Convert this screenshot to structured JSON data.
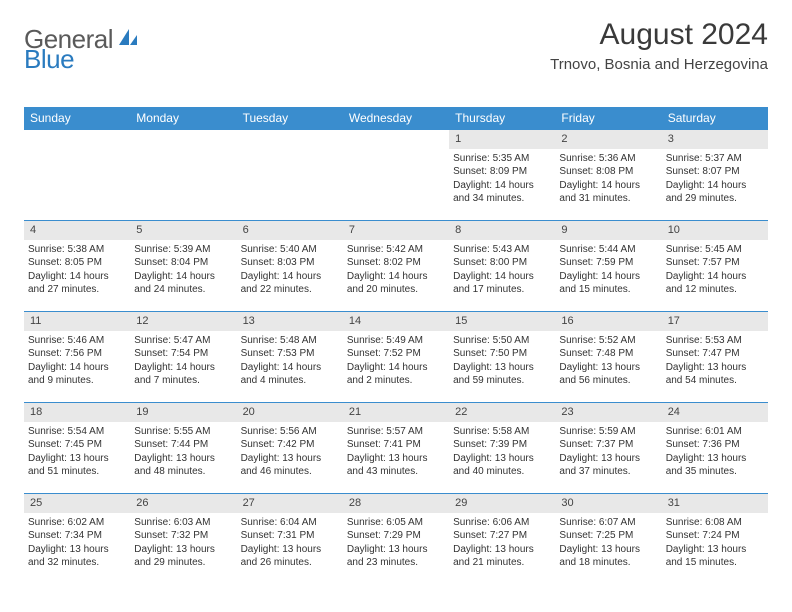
{
  "logo": {
    "part1": "General",
    "part2": "Blue"
  },
  "title": "August 2024",
  "location": "Trnovo, Bosnia and Herzegovina",
  "colors": {
    "header_bg": "#3a8dce",
    "header_text": "#ffffff",
    "daynum_bg": "#e8e8e8",
    "row_border": "#3a8dce",
    "logo_gray": "#5a5a5a",
    "logo_blue": "#2a7bbf",
    "text": "#333333"
  },
  "day_names": [
    "Sunday",
    "Monday",
    "Tuesday",
    "Wednesday",
    "Thursday",
    "Friday",
    "Saturday"
  ],
  "weeks": [
    [
      {
        "empty": true
      },
      {
        "empty": true
      },
      {
        "empty": true
      },
      {
        "empty": true
      },
      {
        "day": "1",
        "sunrise": "Sunrise: 5:35 AM",
        "sunset": "Sunset: 8:09 PM",
        "daylight1": "Daylight: 14 hours",
        "daylight2": "and 34 minutes."
      },
      {
        "day": "2",
        "sunrise": "Sunrise: 5:36 AM",
        "sunset": "Sunset: 8:08 PM",
        "daylight1": "Daylight: 14 hours",
        "daylight2": "and 31 minutes."
      },
      {
        "day": "3",
        "sunrise": "Sunrise: 5:37 AM",
        "sunset": "Sunset: 8:07 PM",
        "daylight1": "Daylight: 14 hours",
        "daylight2": "and 29 minutes."
      }
    ],
    [
      {
        "day": "4",
        "sunrise": "Sunrise: 5:38 AM",
        "sunset": "Sunset: 8:05 PM",
        "daylight1": "Daylight: 14 hours",
        "daylight2": "and 27 minutes."
      },
      {
        "day": "5",
        "sunrise": "Sunrise: 5:39 AM",
        "sunset": "Sunset: 8:04 PM",
        "daylight1": "Daylight: 14 hours",
        "daylight2": "and 24 minutes."
      },
      {
        "day": "6",
        "sunrise": "Sunrise: 5:40 AM",
        "sunset": "Sunset: 8:03 PM",
        "daylight1": "Daylight: 14 hours",
        "daylight2": "and 22 minutes."
      },
      {
        "day": "7",
        "sunrise": "Sunrise: 5:42 AM",
        "sunset": "Sunset: 8:02 PM",
        "daylight1": "Daylight: 14 hours",
        "daylight2": "and 20 minutes."
      },
      {
        "day": "8",
        "sunrise": "Sunrise: 5:43 AM",
        "sunset": "Sunset: 8:00 PM",
        "daylight1": "Daylight: 14 hours",
        "daylight2": "and 17 minutes."
      },
      {
        "day": "9",
        "sunrise": "Sunrise: 5:44 AM",
        "sunset": "Sunset: 7:59 PM",
        "daylight1": "Daylight: 14 hours",
        "daylight2": "and 15 minutes."
      },
      {
        "day": "10",
        "sunrise": "Sunrise: 5:45 AM",
        "sunset": "Sunset: 7:57 PM",
        "daylight1": "Daylight: 14 hours",
        "daylight2": "and 12 minutes."
      }
    ],
    [
      {
        "day": "11",
        "sunrise": "Sunrise: 5:46 AM",
        "sunset": "Sunset: 7:56 PM",
        "daylight1": "Daylight: 14 hours",
        "daylight2": "and 9 minutes."
      },
      {
        "day": "12",
        "sunrise": "Sunrise: 5:47 AM",
        "sunset": "Sunset: 7:54 PM",
        "daylight1": "Daylight: 14 hours",
        "daylight2": "and 7 minutes."
      },
      {
        "day": "13",
        "sunrise": "Sunrise: 5:48 AM",
        "sunset": "Sunset: 7:53 PM",
        "daylight1": "Daylight: 14 hours",
        "daylight2": "and 4 minutes."
      },
      {
        "day": "14",
        "sunrise": "Sunrise: 5:49 AM",
        "sunset": "Sunset: 7:52 PM",
        "daylight1": "Daylight: 14 hours",
        "daylight2": "and 2 minutes."
      },
      {
        "day": "15",
        "sunrise": "Sunrise: 5:50 AM",
        "sunset": "Sunset: 7:50 PM",
        "daylight1": "Daylight: 13 hours",
        "daylight2": "and 59 minutes."
      },
      {
        "day": "16",
        "sunrise": "Sunrise: 5:52 AM",
        "sunset": "Sunset: 7:48 PM",
        "daylight1": "Daylight: 13 hours",
        "daylight2": "and 56 minutes."
      },
      {
        "day": "17",
        "sunrise": "Sunrise: 5:53 AM",
        "sunset": "Sunset: 7:47 PM",
        "daylight1": "Daylight: 13 hours",
        "daylight2": "and 54 minutes."
      }
    ],
    [
      {
        "day": "18",
        "sunrise": "Sunrise: 5:54 AM",
        "sunset": "Sunset: 7:45 PM",
        "daylight1": "Daylight: 13 hours",
        "daylight2": "and 51 minutes."
      },
      {
        "day": "19",
        "sunrise": "Sunrise: 5:55 AM",
        "sunset": "Sunset: 7:44 PM",
        "daylight1": "Daylight: 13 hours",
        "daylight2": "and 48 minutes."
      },
      {
        "day": "20",
        "sunrise": "Sunrise: 5:56 AM",
        "sunset": "Sunset: 7:42 PM",
        "daylight1": "Daylight: 13 hours",
        "daylight2": "and 46 minutes."
      },
      {
        "day": "21",
        "sunrise": "Sunrise: 5:57 AM",
        "sunset": "Sunset: 7:41 PM",
        "daylight1": "Daylight: 13 hours",
        "daylight2": "and 43 minutes."
      },
      {
        "day": "22",
        "sunrise": "Sunrise: 5:58 AM",
        "sunset": "Sunset: 7:39 PM",
        "daylight1": "Daylight: 13 hours",
        "daylight2": "and 40 minutes."
      },
      {
        "day": "23",
        "sunrise": "Sunrise: 5:59 AM",
        "sunset": "Sunset: 7:37 PM",
        "daylight1": "Daylight: 13 hours",
        "daylight2": "and 37 minutes."
      },
      {
        "day": "24",
        "sunrise": "Sunrise: 6:01 AM",
        "sunset": "Sunset: 7:36 PM",
        "daylight1": "Daylight: 13 hours",
        "daylight2": "and 35 minutes."
      }
    ],
    [
      {
        "day": "25",
        "sunrise": "Sunrise: 6:02 AM",
        "sunset": "Sunset: 7:34 PM",
        "daylight1": "Daylight: 13 hours",
        "daylight2": "and 32 minutes."
      },
      {
        "day": "26",
        "sunrise": "Sunrise: 6:03 AM",
        "sunset": "Sunset: 7:32 PM",
        "daylight1": "Daylight: 13 hours",
        "daylight2": "and 29 minutes."
      },
      {
        "day": "27",
        "sunrise": "Sunrise: 6:04 AM",
        "sunset": "Sunset: 7:31 PM",
        "daylight1": "Daylight: 13 hours",
        "daylight2": "and 26 minutes."
      },
      {
        "day": "28",
        "sunrise": "Sunrise: 6:05 AM",
        "sunset": "Sunset: 7:29 PM",
        "daylight1": "Daylight: 13 hours",
        "daylight2": "and 23 minutes."
      },
      {
        "day": "29",
        "sunrise": "Sunrise: 6:06 AM",
        "sunset": "Sunset: 7:27 PM",
        "daylight1": "Daylight: 13 hours",
        "daylight2": "and 21 minutes."
      },
      {
        "day": "30",
        "sunrise": "Sunrise: 6:07 AM",
        "sunset": "Sunset: 7:25 PM",
        "daylight1": "Daylight: 13 hours",
        "daylight2": "and 18 minutes."
      },
      {
        "day": "31",
        "sunrise": "Sunrise: 6:08 AM",
        "sunset": "Sunset: 7:24 PM",
        "daylight1": "Daylight: 13 hours",
        "daylight2": "and 15 minutes."
      }
    ]
  ]
}
